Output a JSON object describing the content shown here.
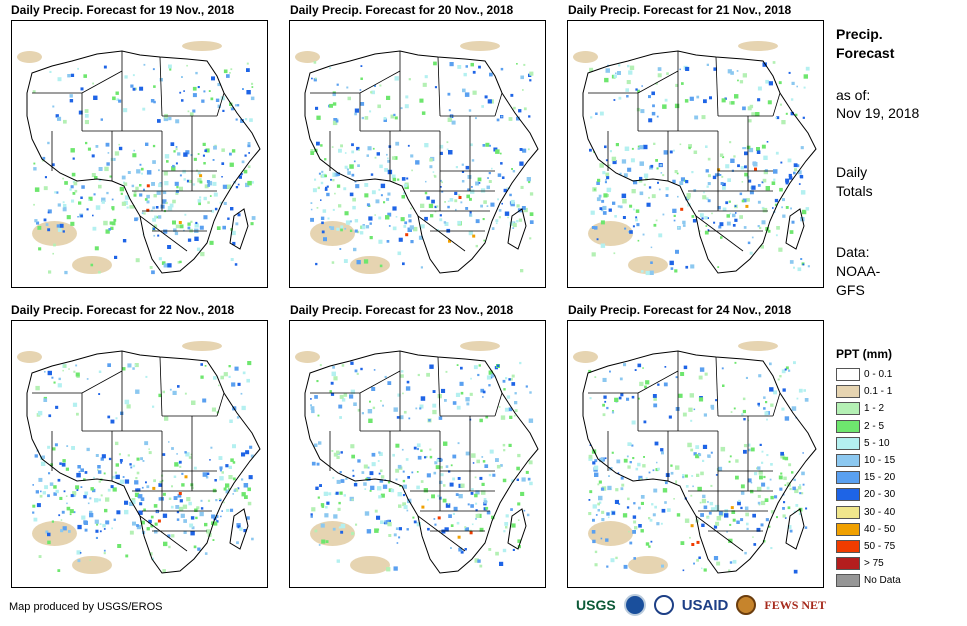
{
  "panels": [
    {
      "title": "Daily Precip. Forecast for 19 Nov., 2018"
    },
    {
      "title": "Daily Precip. Forecast for 20 Nov., 2018"
    },
    {
      "title": "Daily Precip. Forecast for 21 Nov., 2018"
    },
    {
      "title": "Daily Precip. Forecast for 22 Nov., 2018"
    },
    {
      "title": "Daily Precip. Forecast for 23 Nov., 2018"
    },
    {
      "title": "Daily Precip. Forecast for 24 Nov., 2018"
    }
  ],
  "sidebar": {
    "title_line1": "Precip.",
    "title_line2": "Forecast",
    "asof_label": "as of:",
    "asof_date": "Nov 19, 2018",
    "period_line1": "Daily",
    "period_line2": "Totals",
    "data_label": "Data:",
    "data_line1": "NOAA-",
    "data_line2": "GFS"
  },
  "legend": {
    "title": "PPT (mm)",
    "items": [
      {
        "label": "0 - 0.1",
        "color": "#ffffff"
      },
      {
        "label": "0.1 - 1",
        "color": "#e6d4b1"
      },
      {
        "label": "1 - 2",
        "color": "#b4f0b4"
      },
      {
        "label": "2 - 5",
        "color": "#6ee66e"
      },
      {
        "label": "5 - 10",
        "color": "#b4f0f0"
      },
      {
        "label": "10 - 15",
        "color": "#8cc8f0"
      },
      {
        "label": "15 - 20",
        "color": "#5aa0f0"
      },
      {
        "label": "20 - 30",
        "color": "#1e64e6"
      },
      {
        "label": "30 - 40",
        "color": "#f0e68c"
      },
      {
        "label": "40 - 50",
        "color": "#f0a000"
      },
      {
        "label": "50 - 75",
        "color": "#f03c00"
      },
      {
        "label": "> 75",
        "color": "#b41e1e"
      },
      {
        "label": "No Data",
        "color": "#969696"
      }
    ]
  },
  "footer": {
    "credit": "Map produced by USGS/EROS"
  },
  "logos": {
    "usgs": "USGS",
    "usaid": "USAID",
    "fews": "FEWS NET"
  }
}
